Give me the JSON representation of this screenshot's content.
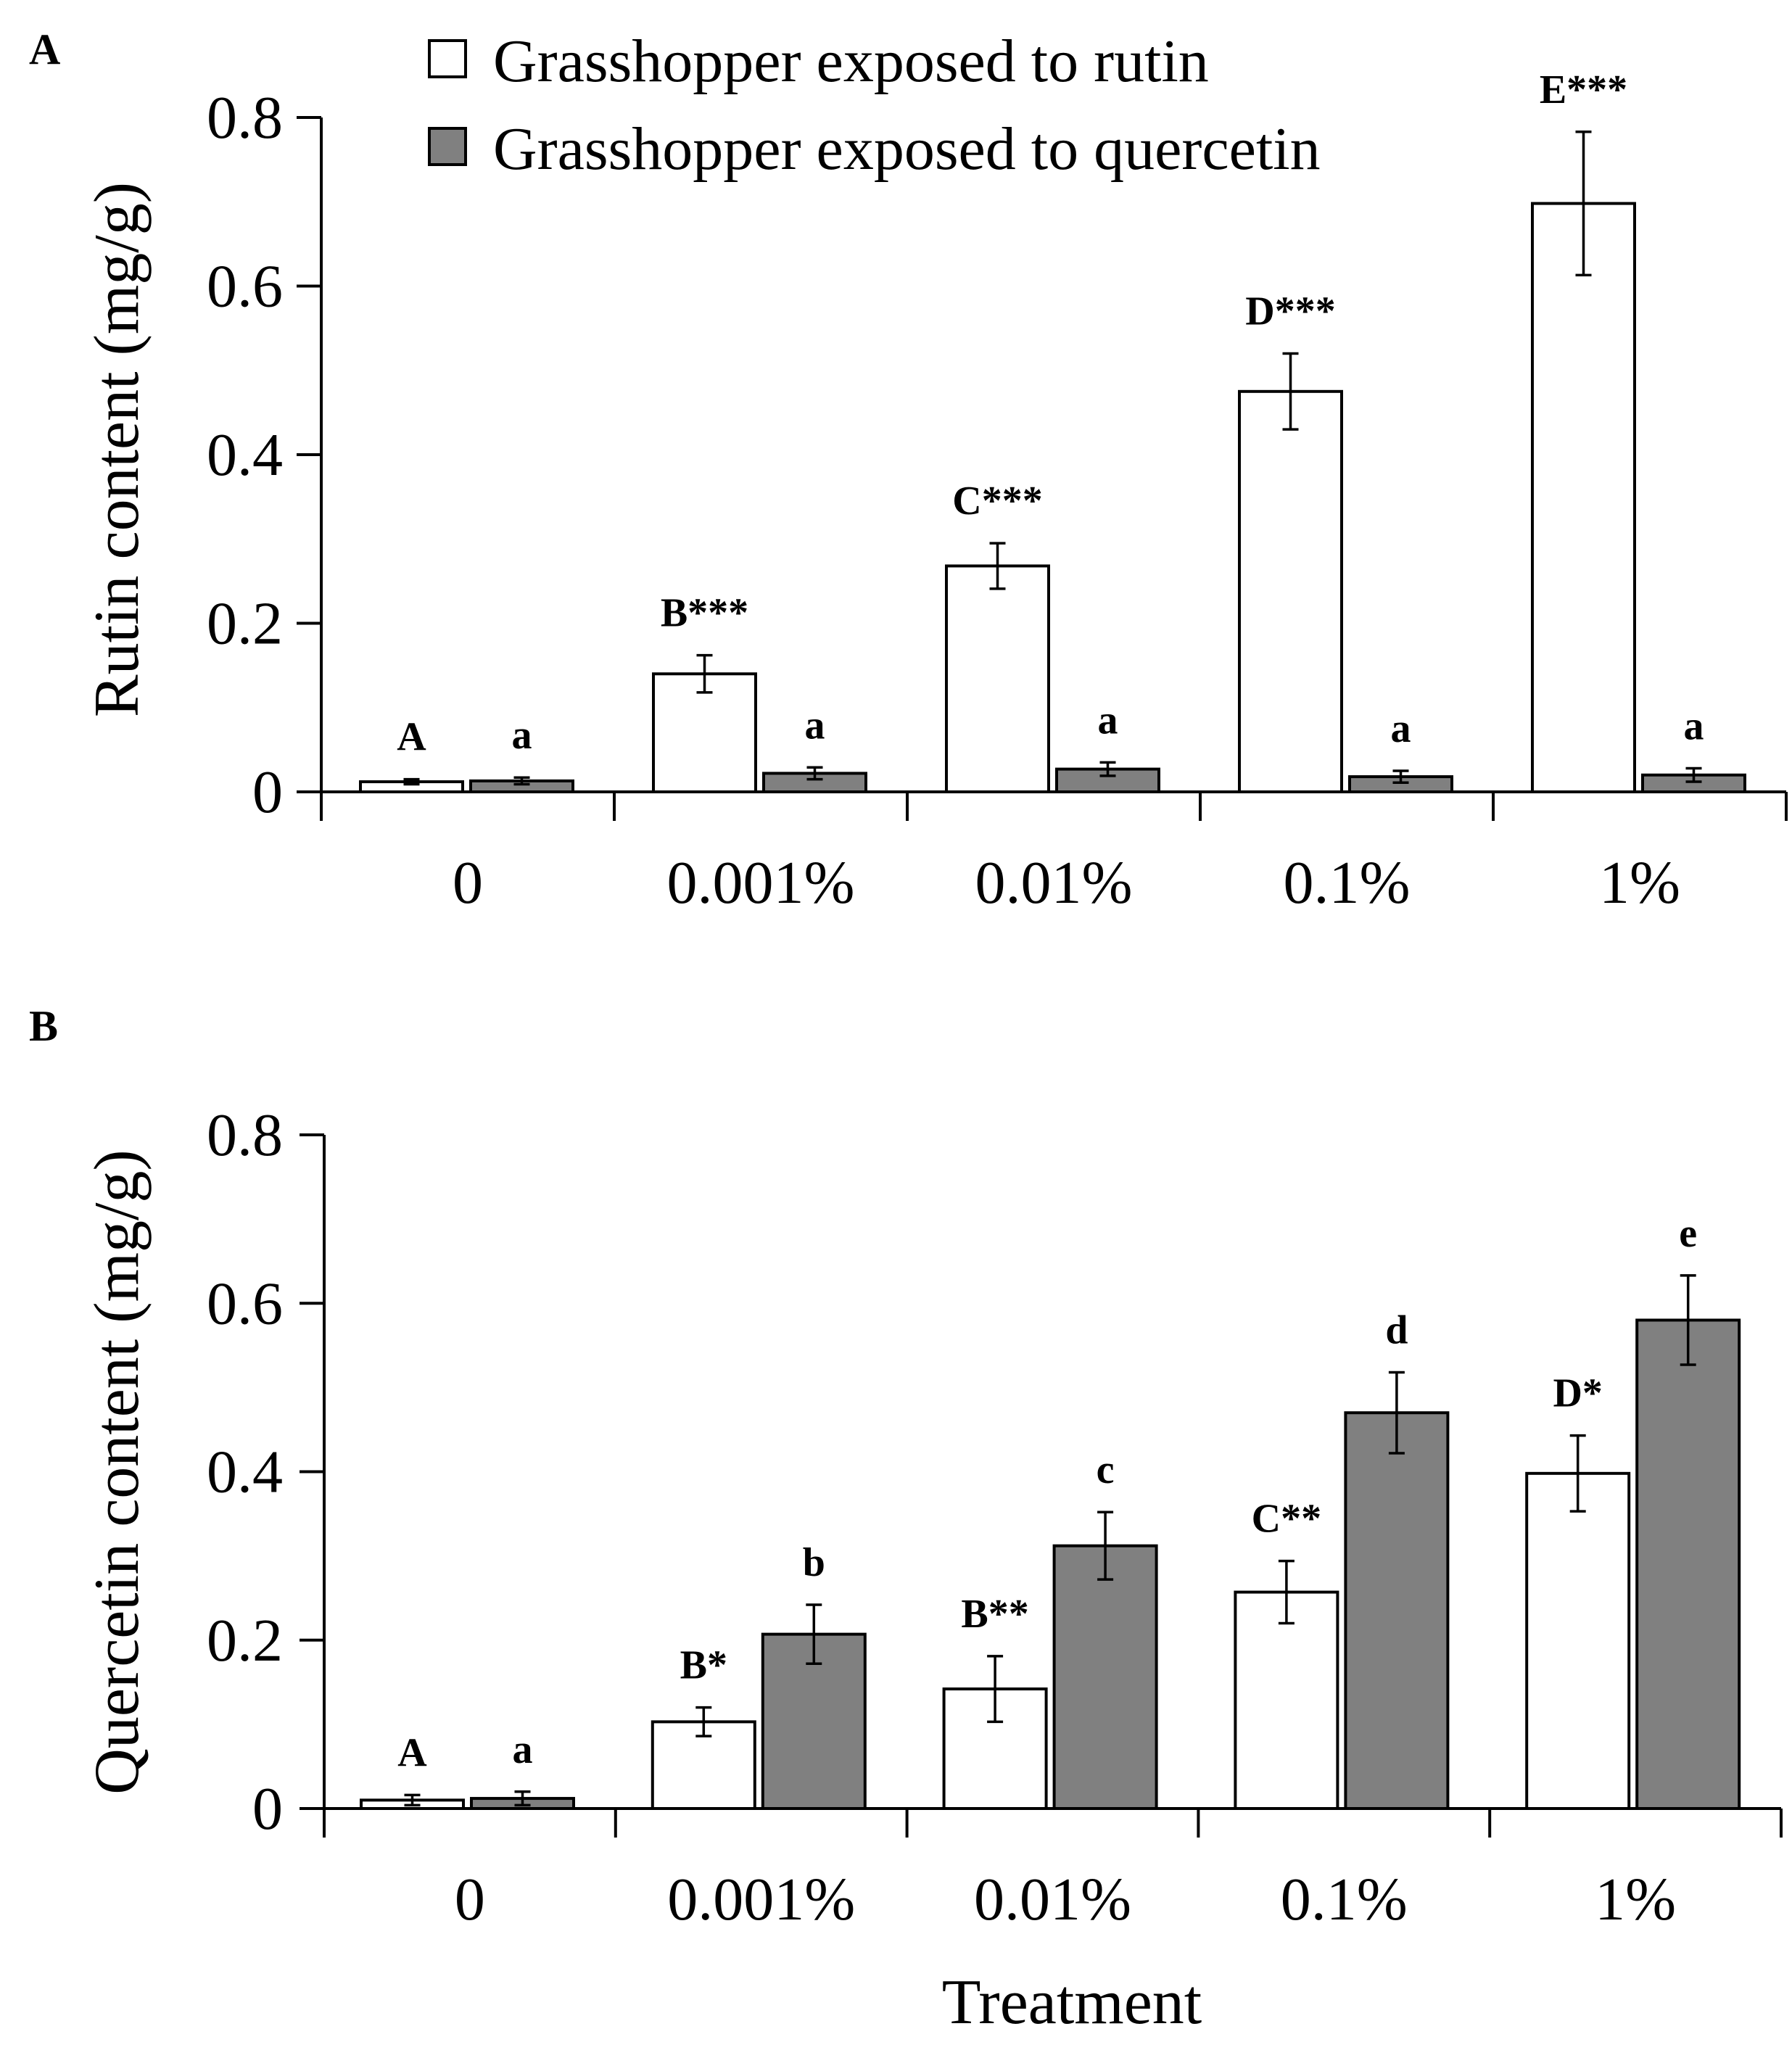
{
  "legend": {
    "rutin_label": "Grasshopper exposed to rutin",
    "quercetin_label": "Grasshopper exposed to quercetin"
  },
  "colors": {
    "rutin": "#ffffff",
    "quercetin": "#808080"
  },
  "xlabel": "Treatment",
  "chart_data": [
    {
      "panel": "A",
      "type": "bar",
      "title": "",
      "ylabel": "Rutin content (mg/g)",
      "xlabel": "",
      "ylim": [
        0,
        0.8
      ],
      "yticks": [
        "0",
        "0.2",
        "0.4",
        "0.6",
        "0.8"
      ],
      "ytick_values": [
        0,
        0.2,
        0.4,
        0.6,
        0.8
      ],
      "categories": [
        "0",
        "0.001%",
        "0.01%",
        "0.1%",
        "1%"
      ],
      "series": [
        {
          "name": "Grasshopper exposed to rutin",
          "values": [
            0.012,
            0.14,
            0.268,
            0.475,
            0.698
          ],
          "errors": [
            0.003,
            0.022,
            0.027,
            0.045,
            0.085
          ],
          "sig_labels": [
            "A",
            "B***",
            "C***",
            "D***",
            "E***"
          ]
        },
        {
          "name": "Grasshopper exposed to quercetin",
          "values": [
            0.013,
            0.022,
            0.027,
            0.018,
            0.02
          ],
          "errors": [
            0.004,
            0.007,
            0.008,
            0.007,
            0.008
          ],
          "sig_labels": [
            "a",
            "a",
            "a",
            "a",
            "a"
          ]
        }
      ]
    },
    {
      "panel": "B",
      "type": "bar",
      "title": "",
      "ylabel": "Quercetin content (mg/g)",
      "xlabel": "Treatment",
      "ylim": [
        0,
        0.8
      ],
      "yticks": [
        "0",
        "0.2",
        "0.4",
        "0.6",
        "0.8"
      ],
      "ytick_values": [
        0,
        0.2,
        0.4,
        0.6,
        0.8
      ],
      "categories": [
        "0",
        "0.001%",
        "0.01%",
        "0.1%",
        "1%"
      ],
      "series": [
        {
          "name": "Grasshopper exposed to rutin",
          "values": [
            0.01,
            0.103,
            0.142,
            0.257,
            0.398
          ],
          "errors": [
            0.006,
            0.017,
            0.039,
            0.037,
            0.045
          ],
          "sig_labels": [
            "A",
            "B*",
            "B**",
            "C**",
            "D*"
          ]
        },
        {
          "name": "Grasshopper exposed to quercetin",
          "values": [
            0.012,
            0.207,
            0.312,
            0.47,
            0.58
          ],
          "errors": [
            0.008,
            0.035,
            0.04,
            0.048,
            0.053
          ],
          "sig_labels": [
            "a",
            "b",
            "c",
            "d",
            "e"
          ]
        }
      ]
    }
  ]
}
